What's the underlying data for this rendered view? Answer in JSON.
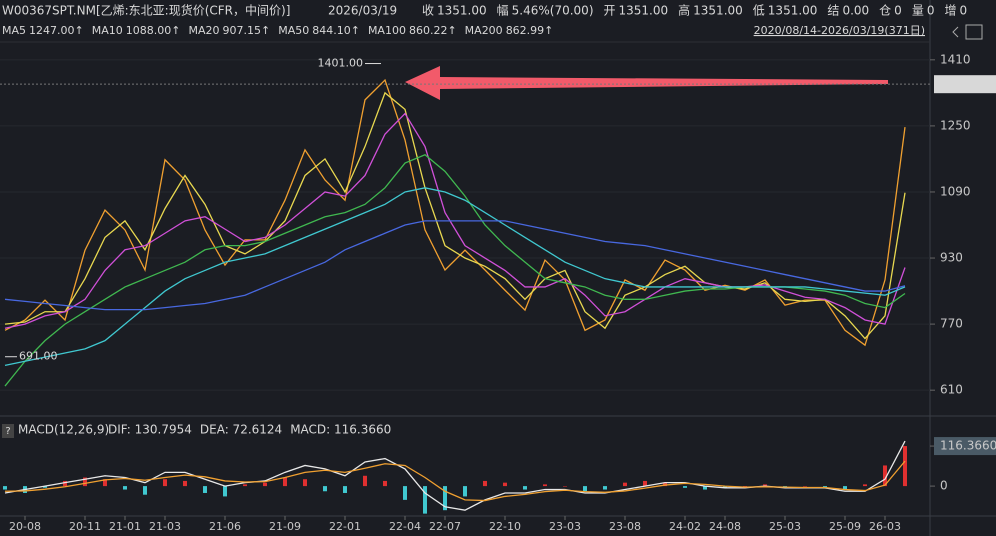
{
  "chart_data": {
    "type": "line",
    "symbol": "W00367SPT.NM[乙烯:东北亚:现货价(CFR，中间价)]",
    "date": "2026/03/19",
    "quote": [
      {
        "label": "收",
        "value": "1351.00",
        "color": "#f04848"
      },
      {
        "label": "幅",
        "value": "5.46%(70.00)",
        "color": "#f04848"
      },
      {
        "label": "开",
        "value": "1351.00",
        "color": "#f04848"
      },
      {
        "label": "高",
        "value": "1351.00",
        "color": "#f04848"
      },
      {
        "label": "低",
        "value": "1351.00",
        "color": "#f04848"
      },
      {
        "label": "结",
        "value": "0.00",
        "color": "#f04848"
      },
      {
        "label": "仓",
        "value": "0",
        "color": "#e0e0e0"
      },
      {
        "label": "量",
        "value": "0",
        "color": "#e0e0e0"
      },
      {
        "label": "增",
        "value": "0",
        "color": "#e0e0e0"
      }
    ],
    "range": "2020/08/14-2026/03/19(371日)",
    "categories": [
      null,
      "20-08",
      null,
      null,
      "20-11",
      null,
      "21-01",
      null,
      "21-03",
      null,
      null,
      "21-06",
      null,
      null,
      "21-09",
      null,
      null,
      "22-01",
      null,
      null,
      "22-04",
      null,
      "22-07",
      null,
      null,
      "22-10",
      null,
      null,
      "23-03",
      null,
      null,
      "23-08",
      null,
      null,
      "24-02",
      null,
      "24-08",
      null,
      null,
      "25-03",
      null,
      null,
      "25-09",
      null,
      "26-03",
      null
    ],
    "ylim": [
      562,
      1458
    ],
    "yticks": [
      610,
      770,
      930,
      1090,
      1250,
      1410
    ],
    "last_price": {
      "value": 1351,
      "label": "1351.00"
    },
    "high": {
      "value": 1401,
      "label": "1401.00",
      "index": 19
    },
    "low": {
      "value": 691,
      "label": "691.00",
      "index": 0
    },
    "series": [
      {
        "name": "MA5",
        "legend_value": "1247.00↑",
        "color": "#f0a030",
        "values": [
          755,
          780,
          828,
          780,
          949,
          1046,
          998,
          901,
          1168,
          1119,
          998,
          913,
          974,
          974,
          1070,
          1192,
          1119,
          1070,
          1313,
          1361,
          1216,
          998,
          901,
          949,
          901,
          852,
          804,
          925,
          877,
          755,
          780,
          877,
          852,
          925,
          901,
          852,
          864,
          852,
          877,
          816,
          828,
          828,
          755,
          719,
          877,
          1247
        ]
      },
      {
        "name": "MA10",
        "legend_value": "1088.00↑",
        "color": "#e8d850",
        "values": [
          770,
          775,
          800,
          800,
          880,
          980,
          1020,
          950,
          1050,
          1130,
          1060,
          960,
          940,
          970,
          1020,
          1130,
          1170,
          1090,
          1200,
          1330,
          1290,
          1100,
          960,
          930,
          910,
          880,
          830,
          880,
          900,
          800,
          760,
          840,
          860,
          890,
          910,
          870,
          860,
          855,
          870,
          830,
          825,
          830,
          790,
          735,
          790,
          1088
        ]
      },
      {
        "name": "MA20",
        "legend_value": "907.15↑",
        "color": "#d050d8",
        "values": [
          760,
          770,
          790,
          800,
          830,
          900,
          950,
          960,
          990,
          1020,
          1030,
          1000,
          970,
          980,
          1010,
          1050,
          1090,
          1080,
          1130,
          1230,
          1280,
          1200,
          1040,
          960,
          930,
          900,
          860,
          860,
          880,
          840,
          790,
          800,
          830,
          860,
          880,
          870,
          860,
          860,
          865,
          850,
          835,
          830,
          810,
          780,
          770,
          907.15
        ]
      },
      {
        "name": "MA50",
        "legend_value": "844.10↑",
        "color": "#40b850",
        "values": [
          620,
          680,
          730,
          770,
          800,
          830,
          860,
          880,
          900,
          920,
          950,
          960,
          960,
          970,
          990,
          1010,
          1030,
          1040,
          1060,
          1100,
          1160,
          1180,
          1140,
          1080,
          1010,
          960,
          920,
          880,
          870,
          860,
          840,
          830,
          830,
          840,
          850,
          855,
          855,
          860,
          860,
          860,
          855,
          850,
          840,
          820,
          810,
          844.1
        ]
      },
      {
        "name": "MA100",
        "legend_value": "860.22↑",
        "color": "#40c8d0",
        "values": [
          670,
          680,
          690,
          700,
          710,
          730,
          770,
          810,
          850,
          880,
          900,
          920,
          930,
          940,
          960,
          980,
          1000,
          1020,
          1040,
          1060,
          1090,
          1100,
          1090,
          1070,
          1040,
          1010,
          980,
          950,
          920,
          900,
          880,
          870,
          860,
          860,
          860,
          860,
          860,
          860,
          860,
          860,
          860,
          855,
          850,
          845,
          840,
          860.22
        ]
      },
      {
        "name": "MA200",
        "legend_value": "862.99↑",
        "color": "#4868e0",
        "values": [
          830,
          825,
          820,
          815,
          810,
          805,
          805,
          805,
          810,
          815,
          820,
          830,
          840,
          860,
          880,
          900,
          920,
          950,
          970,
          990,
          1010,
          1020,
          1020,
          1020,
          1020,
          1020,
          1010,
          1000,
          990,
          980,
          970,
          965,
          960,
          950,
          940,
          930,
          920,
          910,
          900,
          890,
          880,
          870,
          860,
          850,
          850,
          862.99
        ]
      }
    ],
    "macd": {
      "title": "MACD(12,26,9)",
      "legend": [
        {
          "text": "DIF: 130.7954",
          "color": "#e8e8e8"
        },
        {
          "text": "DEA: 72.6124",
          "color": "#f0a030"
        },
        {
          "text": "MACD: 116.3660",
          "color": "#40c8d0"
        }
      ],
      "ylim": [
        -84,
        134
      ],
      "yticks": [
        0,
        {
          "value": 116.366,
          "label": "116.3660"
        }
      ],
      "dif": [
        -20,
        -10,
        0,
        10,
        20,
        30,
        25,
        10,
        40,
        40,
        20,
        0,
        10,
        15,
        40,
        60,
        50,
        30,
        70,
        80,
        50,
        -20,
        -60,
        -70,
        -40,
        -20,
        -20,
        -10,
        -10,
        -20,
        -20,
        -10,
        0,
        10,
        10,
        0,
        -5,
        -5,
        0,
        -5,
        -5,
        -5,
        -15,
        -15,
        20,
        130.7954
      ],
      "dea": [
        -15,
        -14,
        -9,
        -2,
        8,
        18,
        22,
        17,
        25,
        32,
        27,
        15,
        12,
        13,
        25,
        40,
        46,
        40,
        52,
        65,
        60,
        25,
        -15,
        -40,
        -42,
        -30,
        -24,
        -16,
        -12,
        -16,
        -18,
        -14,
        -6,
        3,
        8,
        5,
        0,
        -3,
        -2,
        -3,
        -4,
        -4,
        -10,
        -13,
        3,
        72.6124
      ],
      "hist": [
        -10,
        -20,
        -5,
        15,
        25,
        20,
        -10,
        -25,
        20,
        15,
        -20,
        -30,
        5,
        10,
        25,
        20,
        -15,
        -20,
        30,
        15,
        -40,
        -80,
        -70,
        -30,
        15,
        10,
        -10,
        5,
        0,
        -15,
        -10,
        10,
        15,
        10,
        -5,
        -10,
        -5,
        0,
        5,
        -5,
        0,
        -5,
        -10,
        5,
        60,
        116.366
      ],
      "dif_color": "#e8e8e8",
      "dea_color": "#f0a030",
      "up_color": "#e03030",
      "down_color": "#40c8d0"
    }
  }
}
